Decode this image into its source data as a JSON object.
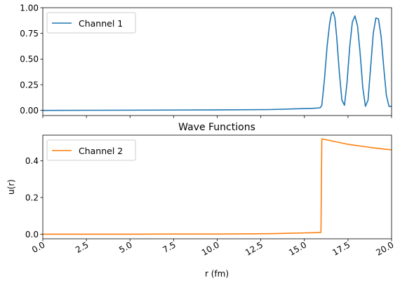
{
  "chart_data": [
    {
      "type": "line",
      "title": "",
      "xlabel": "",
      "ylabel": "",
      "xlim": [
        0,
        20
      ],
      "ylim": [
        -0.05,
        1.0
      ],
      "xticks": [
        0,
        2.5,
        5,
        7.5,
        10,
        12.5,
        15,
        17.5,
        20
      ],
      "yticks": [
        "0.00",
        "0.25",
        "0.50",
        "0.75",
        "1.00"
      ],
      "grid": false,
      "legend": "upper-left",
      "series": [
        {
          "name": "Channel 1",
          "color": "#1f77b4",
          "x": [
            0,
            5,
            10,
            13,
            15.5,
            15.9,
            16.0,
            16.15,
            16.3,
            16.45,
            16.55,
            16.65,
            16.75,
            16.85,
            17.0,
            17.15,
            17.3,
            17.45,
            17.6,
            17.75,
            17.9,
            18.05,
            18.2,
            18.35,
            18.5,
            18.65,
            18.8,
            18.95,
            19.1,
            19.25,
            19.4,
            19.55,
            19.7,
            19.85,
            20.0
          ],
          "y": [
            0.0,
            0.002,
            0.005,
            0.008,
            0.02,
            0.025,
            0.05,
            0.3,
            0.62,
            0.85,
            0.94,
            0.96,
            0.9,
            0.72,
            0.38,
            0.1,
            0.05,
            0.28,
            0.62,
            0.86,
            0.92,
            0.82,
            0.55,
            0.22,
            0.04,
            0.1,
            0.42,
            0.75,
            0.9,
            0.89,
            0.72,
            0.42,
            0.15,
            0.04,
            0.04
          ]
        }
      ]
    },
    {
      "type": "line",
      "title": "Wave Functions",
      "xlabel": "r (fm)",
      "ylabel": "u(r)",
      "xlim": [
        0,
        20
      ],
      "ylim": [
        -0.025,
        0.54
      ],
      "xticks": [
        "0.0",
        "2.5",
        "5.0",
        "7.5",
        "10.0",
        "12.5",
        "15.0",
        "17.5",
        "20.0"
      ],
      "yticks": [
        "0.0",
        "0.2",
        "0.4"
      ],
      "grid": false,
      "legend": "upper-left",
      "series": [
        {
          "name": "Channel 2",
          "color": "#ff7f0e",
          "x": [
            0,
            5,
            8,
            10,
            12,
            13,
            14,
            15,
            15.5,
            15.95,
            16.0,
            16.5,
            17,
            17.5,
            18,
            18.5,
            19,
            19.5,
            20
          ],
          "y": [
            0.0,
            0.0,
            0.001,
            0.001,
            0.002,
            0.003,
            0.005,
            0.007,
            0.008,
            0.01,
            0.52,
            0.51,
            0.5,
            0.49,
            0.483,
            0.477,
            0.47,
            0.465,
            0.46
          ]
        }
      ]
    }
  ]
}
